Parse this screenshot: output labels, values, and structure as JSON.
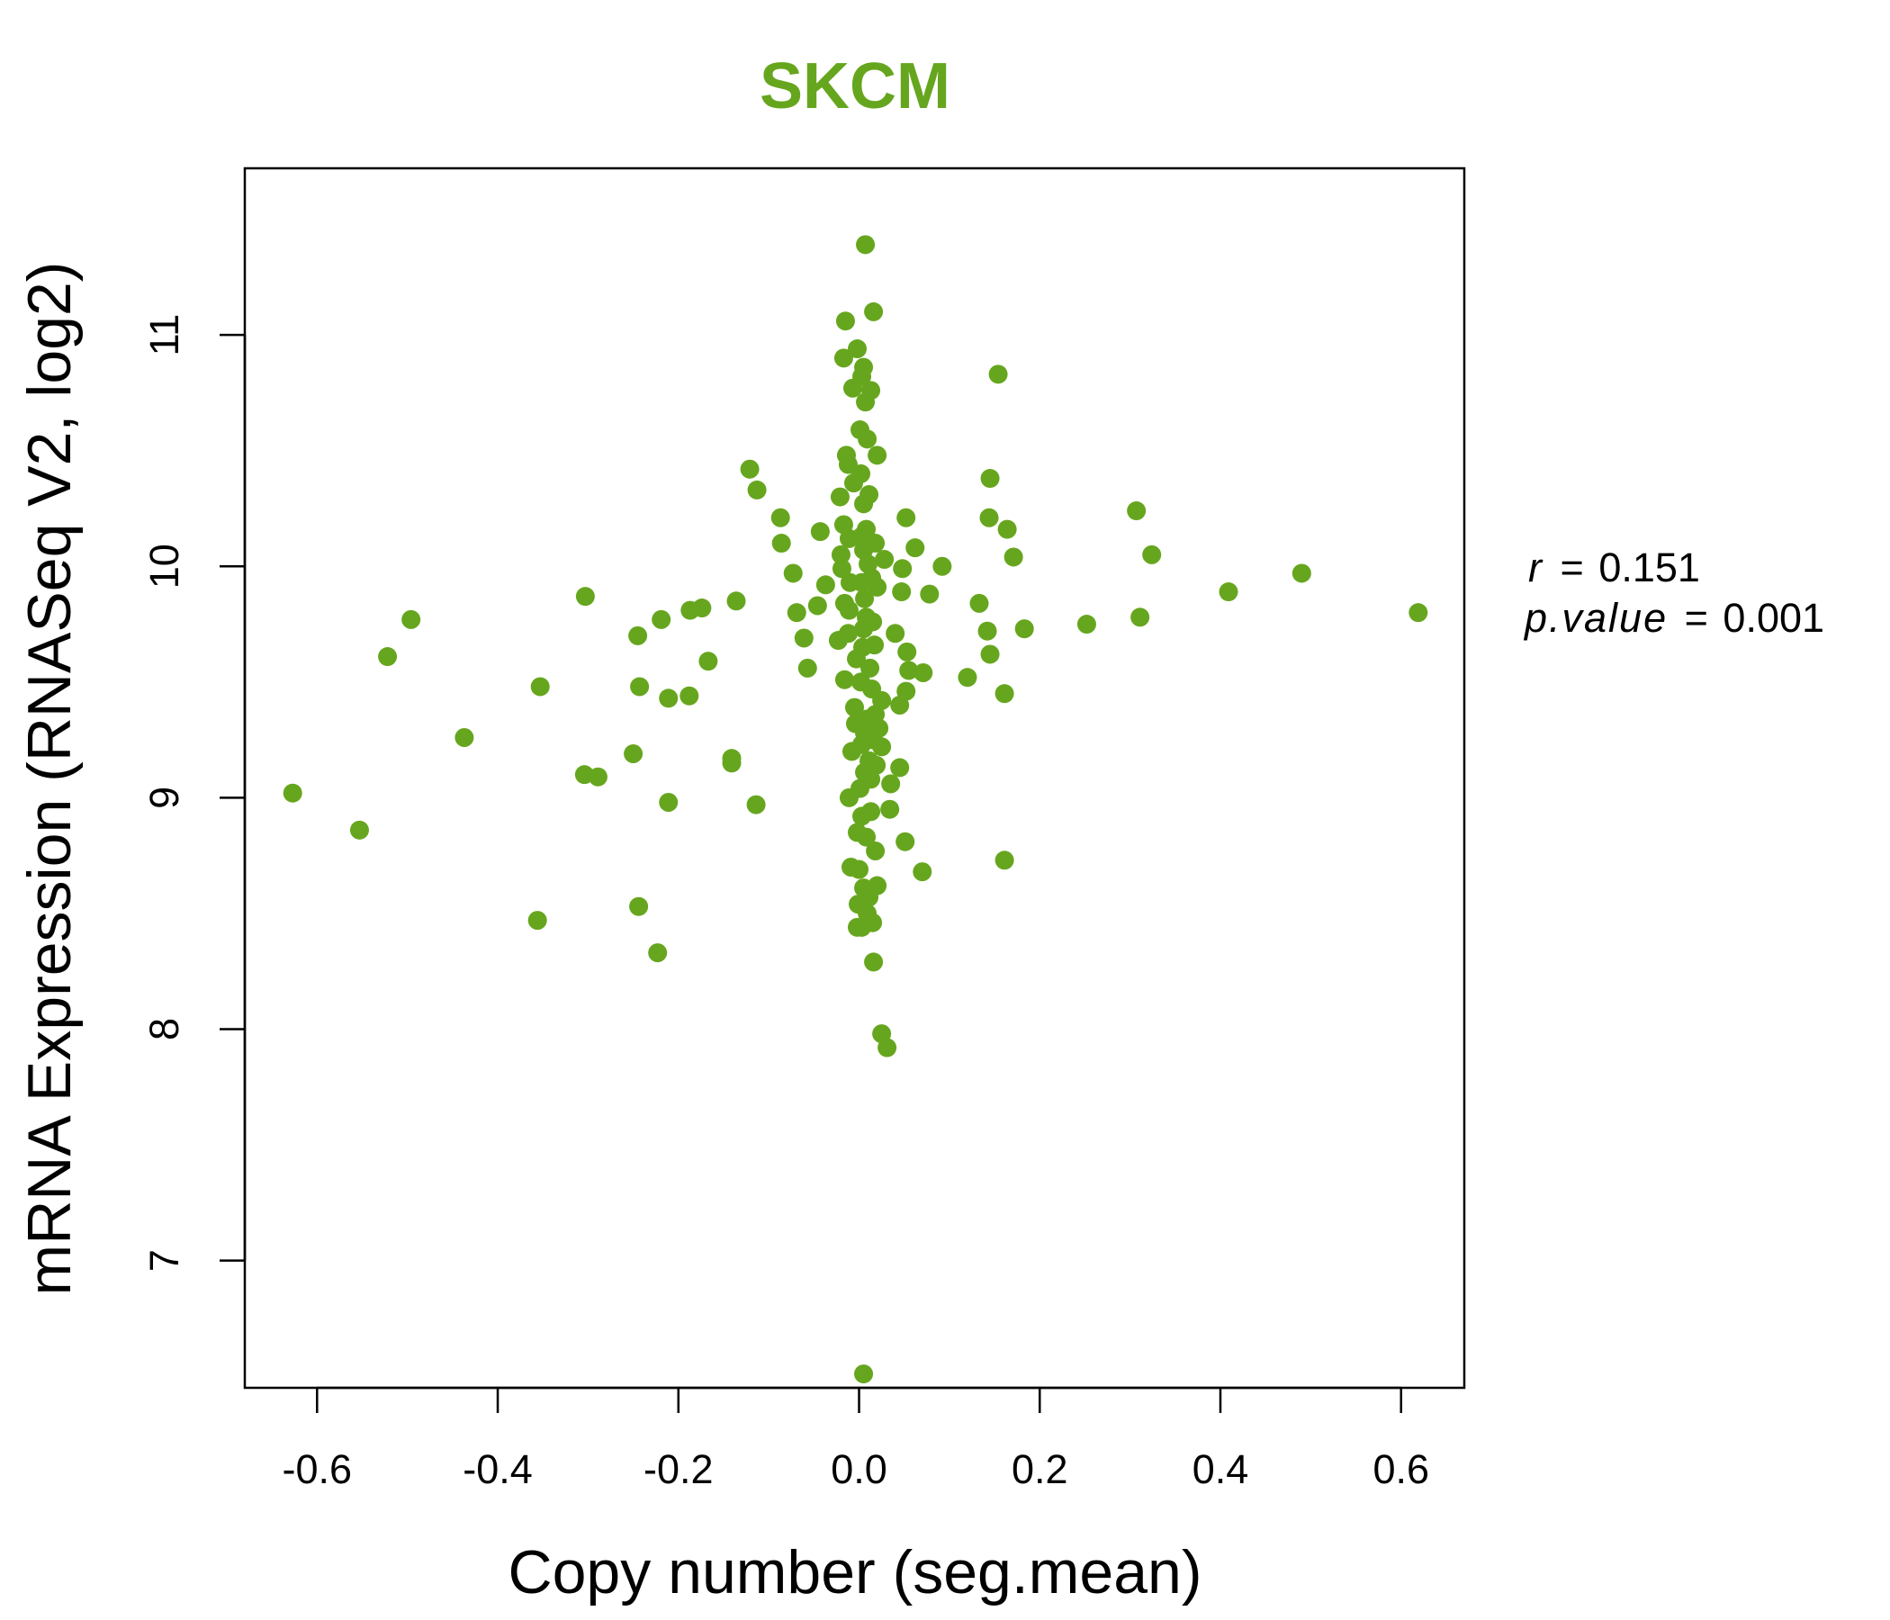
{
  "colors": {
    "accent": "#66A61E",
    "axis": "#000000",
    "background": "#FFFFFF"
  },
  "chart_data": {
    "type": "scatter",
    "title": "SKCM",
    "xlabel": "Copy number (seg.mean)",
    "ylabel": "mRNA Expression (RNASeq V2, log2)",
    "xlim": [
      -0.68,
      0.67
    ],
    "ylim": [
      6.45,
      11.72
    ],
    "xticks": [
      -0.6,
      -0.4,
      -0.2,
      0.0,
      0.2,
      0.4,
      0.6
    ],
    "xtick_labels": [
      "-0.6",
      "-0.4",
      "-0.2",
      "0.0",
      "0.2",
      "0.4",
      "0.6"
    ],
    "yticks": [
      7,
      8,
      9,
      10,
      11
    ],
    "ytick_labels": [
      "7",
      "8",
      "9",
      "10",
      "11"
    ],
    "stats": {
      "r_label": "r",
      "r_value": "0.151",
      "p_label": "p.value",
      "p_value": "0.001"
    },
    "points": [
      [
        0.007,
        11.39
      ],
      [
        0.016,
        11.1
      ],
      [
        -0.015,
        11.06
      ],
      [
        -0.002,
        10.94
      ],
      [
        -0.017,
        10.9
      ],
      [
        0.005,
        10.86
      ],
      [
        0.154,
        10.83
      ],
      [
        0.003,
        10.82
      ],
      [
        -0.007,
        10.77
      ],
      [
        0.013,
        10.76
      ],
      [
        0.007,
        10.71
      ],
      [
        0.001,
        10.59
      ],
      [
        0.009,
        10.55
      ],
      [
        -0.014,
        10.48
      ],
      [
        0.02,
        10.48
      ],
      [
        -0.012,
        10.44
      ],
      [
        -0.121,
        10.42
      ],
      [
        0.002,
        10.4
      ],
      [
        0.145,
        10.38
      ],
      [
        -0.006,
        10.36
      ],
      [
        -0.113,
        10.33
      ],
      [
        0.011,
        10.31
      ],
      [
        -0.021,
        10.3
      ],
      [
        0.005,
        10.27
      ],
      [
        0.307,
        10.24
      ],
      [
        -0.087,
        10.21
      ],
      [
        0.052,
        10.21
      ],
      [
        0.144,
        10.21
      ],
      [
        -0.017,
        10.18
      ],
      [
        0.008,
        10.16
      ],
      [
        0.164,
        10.16
      ],
      [
        -0.043,
        10.15
      ],
      [
        0.003,
        10.13
      ],
      [
        -0.011,
        10.12
      ],
      [
        0.018,
        10.1
      ],
      [
        -0.086,
        10.1
      ],
      [
        0.062,
        10.08
      ],
      [
        0.005,
        10.07
      ],
      [
        -0.02,
        10.05
      ],
      [
        0.324,
        10.05
      ],
      [
        0.171,
        10.04
      ],
      [
        0.028,
        10.03
      ],
      [
        0.01,
        10.01
      ],
      [
        0.092,
        10.0
      ],
      [
        0.048,
        9.99
      ],
      [
        -0.019,
        9.99
      ],
      [
        -0.073,
        9.97
      ],
      [
        0.49,
        9.97
      ],
      [
        0.014,
        9.95
      ],
      [
        0.003,
        9.93
      ],
      [
        -0.01,
        9.93
      ],
      [
        -0.037,
        9.92
      ],
      [
        0.02,
        9.91
      ],
      [
        0.047,
        9.89
      ],
      [
        0.409,
        9.89
      ],
      [
        0.078,
        9.88
      ],
      [
        -0.303,
        9.87
      ],
      [
        0.006,
        9.86
      ],
      [
        -0.136,
        9.85
      ],
      [
        -0.016,
        9.84
      ],
      [
        0.133,
        9.84
      ],
      [
        -0.046,
        9.83
      ],
      [
        -0.174,
        9.82
      ],
      [
        -0.011,
        9.81
      ],
      [
        -0.187,
        9.81
      ],
      [
        -0.069,
        9.8
      ],
      [
        0.619,
        9.8
      ],
      [
        0.008,
        9.78
      ],
      [
        0.311,
        9.78
      ],
      [
        -0.219,
        9.77
      ],
      [
        -0.496,
        9.77
      ],
      [
        0.015,
        9.76
      ],
      [
        0.252,
        9.75
      ],
      [
        0.183,
        9.73
      ],
      [
        0.005,
        9.73
      ],
      [
        0.142,
        9.72
      ],
      [
        -0.012,
        9.71
      ],
      [
        0.04,
        9.71
      ],
      [
        -0.245,
        9.7
      ],
      [
        -0.061,
        9.69
      ],
      [
        -0.023,
        9.68
      ],
      [
        0.017,
        9.66
      ],
      [
        0.004,
        9.65
      ],
      [
        0.053,
        9.63
      ],
      [
        0.145,
        9.62
      ],
      [
        -0.522,
        9.61
      ],
      [
        -0.003,
        9.6
      ],
      [
        -0.167,
        9.59
      ],
      [
        -0.057,
        9.56
      ],
      [
        0.012,
        9.56
      ],
      [
        0.055,
        9.55
      ],
      [
        0.071,
        9.54
      ],
      [
        0.12,
        9.52
      ],
      [
        -0.016,
        9.51
      ],
      [
        0.002,
        9.5
      ],
      [
        -0.353,
        9.48
      ],
      [
        -0.243,
        9.48
      ],
      [
        0.014,
        9.47
      ],
      [
        0.052,
        9.46
      ],
      [
        0.161,
        9.45
      ],
      [
        -0.188,
        9.44
      ],
      [
        -0.211,
        9.43
      ],
      [
        0.025,
        9.42
      ],
      [
        0.045,
        9.4
      ],
      [
        -0.005,
        9.39
      ],
      [
        0.018,
        9.36
      ],
      [
        0.009,
        9.34
      ],
      [
        -0.004,
        9.32
      ],
      [
        0.022,
        9.3
      ],
      [
        0.006,
        9.28
      ],
      [
        -0.437,
        9.26
      ],
      [
        0.016,
        9.25
      ],
      [
        0.003,
        9.23
      ],
      [
        0.025,
        9.22
      ],
      [
        -0.008,
        9.2
      ],
      [
        -0.25,
        9.19
      ],
      [
        -0.141,
        9.17
      ],
      [
        0.011,
        9.16
      ],
      [
        -0.141,
        9.15
      ],
      [
        0.019,
        9.14
      ],
      [
        0.045,
        9.13
      ],
      [
        0.006,
        9.11
      ],
      [
        -0.304,
        9.1
      ],
      [
        -0.289,
        9.09
      ],
      [
        0.013,
        9.08
      ],
      [
        0.035,
        9.06
      ],
      [
        0.001,
        9.04
      ],
      [
        -0.627,
        9.02
      ],
      [
        -0.011,
        9.0
      ],
      [
        -0.211,
        8.98
      ],
      [
        -0.114,
        8.97
      ],
      [
        0.034,
        8.95
      ],
      [
        0.013,
        8.94
      ],
      [
        0.003,
        8.92
      ],
      [
        -0.553,
        8.86
      ],
      [
        -0.002,
        8.85
      ],
      [
        0.008,
        8.83
      ],
      [
        0.051,
        8.81
      ],
      [
        0.018,
        8.77
      ],
      [
        0.161,
        8.73
      ],
      [
        -0.009,
        8.7
      ],
      [
        0.0,
        8.69
      ],
      [
        0.07,
        8.68
      ],
      [
        0.02,
        8.62
      ],
      [
        0.005,
        8.61
      ],
      [
        0.011,
        8.57
      ],
      [
        -0.001,
        8.54
      ],
      [
        -0.244,
        8.53
      ],
      [
        0.009,
        8.5
      ],
      [
        -0.356,
        8.47
      ],
      [
        0.015,
        8.46
      ],
      [
        -0.002,
        8.44
      ],
      [
        0.003,
        8.44
      ],
      [
        -0.223,
        8.33
      ],
      [
        0.016,
        8.29
      ],
      [
        0.025,
        7.98
      ],
      [
        0.031,
        7.92
      ],
      [
        0.005,
        6.51
      ]
    ]
  }
}
